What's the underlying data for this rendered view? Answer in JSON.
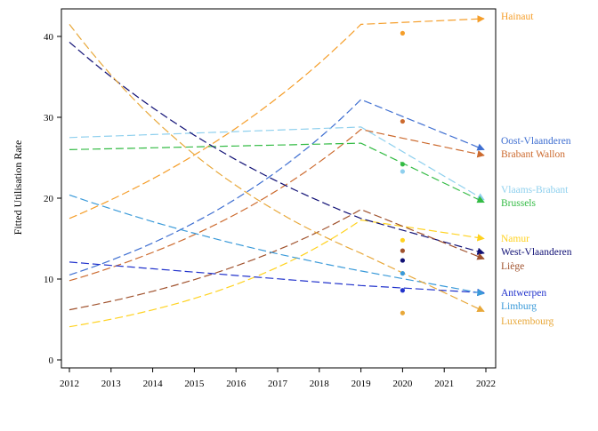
{
  "chart_data": {
    "type": "line",
    "title": "",
    "xlabel": "",
    "ylabel": "Fitted Utilisation Rate",
    "xlim": [
      2012,
      2022
    ],
    "ylim": [
      0,
      43
    ],
    "x_ticks": [
      2012,
      2013,
      2014,
      2015,
      2016,
      2017,
      2018,
      2019,
      2020,
      2021,
      2022
    ],
    "x_tick_labels": [
      "2012",
      "2013",
      "2014",
      "2015",
      "2016",
      "2017",
      "2018",
      "2019",
      "2020",
      "2021",
      "2022"
    ],
    "y_ticks": [
      0,
      10,
      20,
      30,
      40
    ],
    "y_tick_labels": [
      "0",
      "10",
      "20",
      "30",
      "40"
    ],
    "grid": false,
    "legend": "inline labels at line ends (right)",
    "series": [
      {
        "name": "Hainaut",
        "color": "#f59e2a",
        "start": 17.5,
        "end2019": 41.5,
        "end": 42.2,
        "obs2020": 40.4,
        "curve": "exp"
      },
      {
        "name": "Oost-Vlaanderen",
        "color": "#3f6fd1",
        "start": 10.5,
        "end2019": 32.2,
        "end": 26.0,
        "obs2020": null,
        "curve": "exp"
      },
      {
        "name": "Brabant Wallon",
        "color": "#cc6a2e",
        "start": 9.8,
        "end2019": 28.5,
        "end": 25.3,
        "obs2020": 29.5,
        "curve": "exp"
      },
      {
        "name": "Vlaams-Brabant",
        "color": "#8fd0ee",
        "start": 27.5,
        "end2019": 28.8,
        "end": 19.8,
        "obs2020": 23.3,
        "curve": "exp"
      },
      {
        "name": "Brussels",
        "color": "#33bb44",
        "start": 26.0,
        "end2019": 26.8,
        "end": 19.5,
        "obs2020": 24.2,
        "curve": "exp"
      },
      {
        "name": "Namur",
        "color": "#ffd21f",
        "start": 4.1,
        "end2019": 17.3,
        "end": 15.0,
        "obs2020": 14.8,
        "curve": "exp"
      },
      {
        "name": "West-Vlaanderen",
        "color": "#101075",
        "start": 39.3,
        "end2019": 17.5,
        "end": 13.2,
        "obs2020": 12.3,
        "curve": "exp"
      },
      {
        "name": "Liège",
        "color": "#a0522d",
        "start": 6.2,
        "end2019": 18.6,
        "end": 12.5,
        "obs2020": 13.5,
        "curve": "exp"
      },
      {
        "name": "Antwerpen",
        "color": "#2233cc",
        "start": 12.1,
        "end2019": 9.2,
        "end": 8.3,
        "obs2020": 8.6,
        "curve": "linear"
      },
      {
        "name": "Limburg",
        "color": "#3a9ad9",
        "start": 20.4,
        "end2019": 11.0,
        "end": 8.2,
        "obs2020": 10.7,
        "curve": "exp"
      },
      {
        "name": "Luxembourg",
        "color": "#e8a83a",
        "start": 41.5,
        "end2019": 13.2,
        "end": 6.0,
        "obs2020": 5.8,
        "curve": "exp"
      }
    ]
  }
}
